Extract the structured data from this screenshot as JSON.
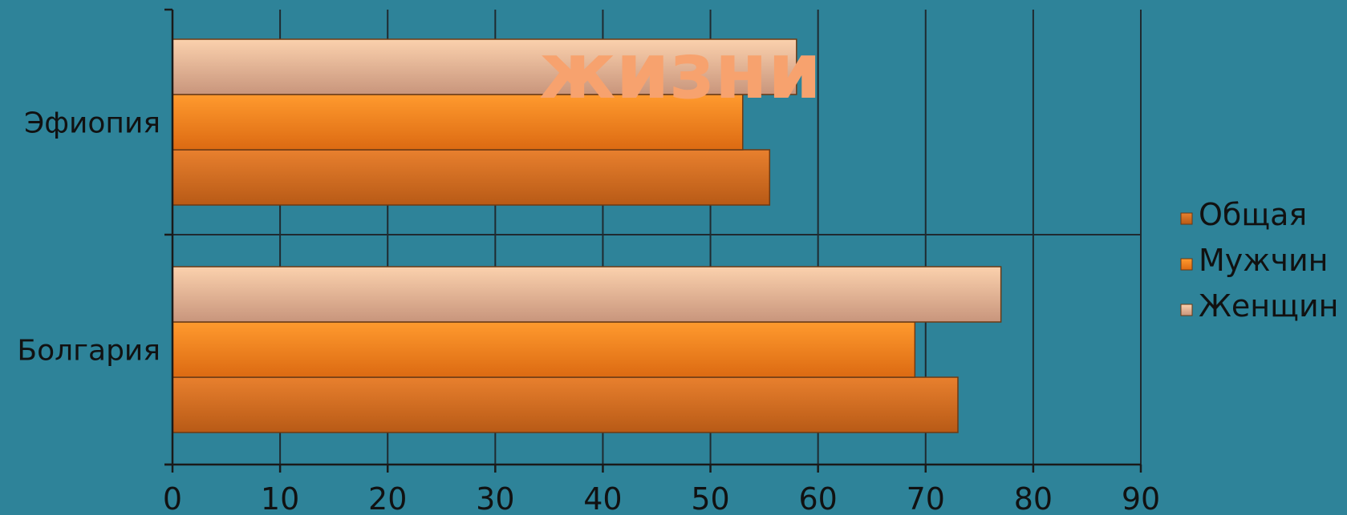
{
  "overlay_text": "жизни",
  "colors": {
    "background": "#2e8399",
    "axis": "#1a1a1a",
    "grid": "#1f2a30",
    "Общая": [
      "#e8802e",
      "#b85a16"
    ],
    "Мужчин": [
      "#ff9a2e",
      "#dc6a12"
    ],
    "Женщин": [
      "#fbd1ad",
      "#c8957c"
    ]
  },
  "chart_data": {
    "type": "bar",
    "orientation": "horizontal",
    "categories": [
      "Болгария",
      "Эфиопия"
    ],
    "series": [
      {
        "name": "Общая",
        "values": [
          73,
          55.5
        ]
      },
      {
        "name": "Мужчин",
        "values": [
          69,
          53
        ]
      },
      {
        "name": "Женщин",
        "values": [
          77,
          58
        ]
      }
    ],
    "xlim": [
      0,
      90
    ],
    "xticks": [
      "0",
      "10",
      "20",
      "30",
      "40",
      "50",
      "60",
      "70",
      "80",
      "90"
    ],
    "grid": true,
    "legend_position": "right",
    "legend": [
      "Общая",
      "Мужчин",
      "Женщин"
    ]
  }
}
